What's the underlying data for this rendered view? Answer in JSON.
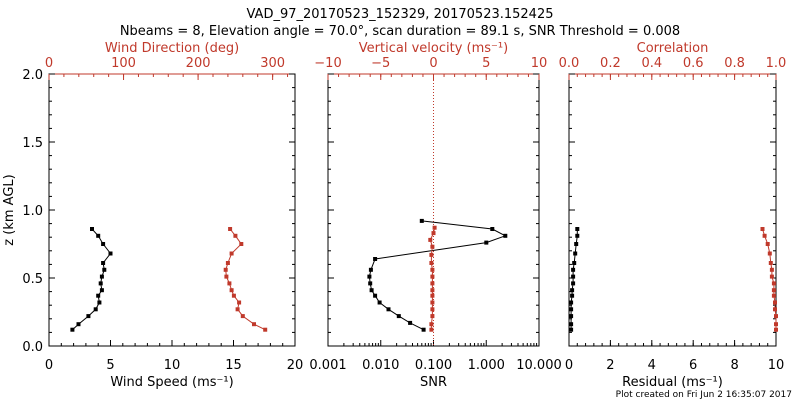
{
  "title_line1": "VAD_97_20170523_152329, 20170523.152425",
  "title_line2": "Nbeams = 8, Elevation angle = 70.0°, scan duration = 89.1 s, SNR Threshold = 0.008",
  "footer": "Plot created on Fri Jun  2 16:35:07 2017",
  "colors": {
    "black": "#000000",
    "red": "#c0392b"
  },
  "chart_data": [
    {
      "type": "line",
      "panel": "wind",
      "ylabel": "z (km AGL)",
      "ylim": [
        0.0,
        2.0
      ],
      "yticks": [
        "0.0",
        "0.5",
        "1.0",
        "1.5",
        "2.0"
      ],
      "bottom_axis": {
        "label": "Wind Speed (ms⁻¹)",
        "xlim": [
          0,
          20
        ],
        "ticks": [
          "0",
          "5",
          "10",
          "15",
          "20"
        ]
      },
      "top_axis": {
        "label": "Wind Direction (deg)",
        "xlim": [
          0,
          330
        ],
        "ticks": [
          "0",
          "100",
          "200",
          "300"
        ],
        "color": "red"
      },
      "series": [
        {
          "axis": "bottom",
          "color": "black",
          "x": [
            1.9,
            2.4,
            3.2,
            3.8,
            4.1,
            4.0,
            4.3,
            4.2,
            4.3,
            4.5,
            4.4,
            5.0,
            4.4,
            4.0,
            3.5
          ],
          "y": [
            0.12,
            0.16,
            0.22,
            0.27,
            0.32,
            0.37,
            0.41,
            0.46,
            0.51,
            0.56,
            0.61,
            0.68,
            0.75,
            0.81,
            0.86
          ]
        },
        {
          "axis": "top",
          "color": "red",
          "x": [
            290,
            275,
            260,
            253,
            255,
            248,
            245,
            242,
            238,
            237,
            240,
            245,
            258,
            250,
            243
          ],
          "y": [
            0.12,
            0.16,
            0.22,
            0.27,
            0.32,
            0.37,
            0.41,
            0.46,
            0.51,
            0.56,
            0.61,
            0.68,
            0.75,
            0.81,
            0.86
          ]
        }
      ]
    },
    {
      "type": "line",
      "panel": "snr",
      "ylim": [
        0.0,
        2.0
      ],
      "bottom_axis": {
        "label": "SNR",
        "scale": "log",
        "xlim": [
          0.001,
          10
        ],
        "ticks": [
          "0.001",
          "0.010",
          "0.100",
          "1.000",
          "10.000"
        ]
      },
      "top_axis": {
        "label": "Vertical velocity (ms⁻¹)",
        "xlim": [
          -10,
          10
        ],
        "ticks": [
          "−10",
          "−5",
          "0",
          "5",
          "10"
        ],
        "color": "red"
      },
      "zero_line": {
        "axis": "top",
        "x": 0,
        "color": "red",
        "style": "dotted"
      },
      "series": [
        {
          "axis": "bottom",
          "color": "black",
          "x": [
            0.065,
            0.036,
            0.022,
            0.014,
            0.0095,
            0.0078,
            0.0067,
            0.0063,
            0.0061,
            0.0065,
            0.0078,
            1.0,
            2.3,
            1.3,
            0.06
          ],
          "y": [
            0.12,
            0.17,
            0.22,
            0.27,
            0.32,
            0.37,
            0.41,
            0.46,
            0.51,
            0.56,
            0.64,
            0.76,
            0.81,
            0.86,
            0.92
          ]
        },
        {
          "axis": "top",
          "color": "red",
          "x": [
            -0.2,
            -0.2,
            -0.1,
            -0.1,
            -0.1,
            -0.1,
            -0.1,
            -0.1,
            -0.1,
            -0.1,
            -0.2,
            -0.2,
            -0.1,
            -0.3,
            0.0,
            0.1
          ],
          "y": [
            0.12,
            0.16,
            0.22,
            0.27,
            0.32,
            0.37,
            0.41,
            0.46,
            0.51,
            0.56,
            0.61,
            0.67,
            0.73,
            0.78,
            0.83,
            0.87
          ]
        }
      ]
    },
    {
      "type": "line",
      "panel": "residual",
      "ylim": [
        0.0,
        2.0
      ],
      "bottom_axis": {
        "label": "Residual (ms⁻¹)",
        "xlim": [
          0,
          10
        ],
        "ticks": [
          "0",
          "2",
          "4",
          "6",
          "8",
          "10"
        ]
      },
      "top_axis": {
        "label": "Correlation",
        "xlim": [
          0.0,
          1.0
        ],
        "ticks": [
          "0.0",
          "0.2",
          "0.4",
          "0.6",
          "0.8",
          "1.0"
        ],
        "color": "red"
      },
      "series": [
        {
          "axis": "bottom",
          "color": "black",
          "x": [
            0.1,
            0.1,
            0.1,
            0.1,
            0.1,
            0.15,
            0.15,
            0.2,
            0.2,
            0.2,
            0.25,
            0.3,
            0.35,
            0.4,
            0.4
          ],
          "y": [
            0.12,
            0.16,
            0.22,
            0.27,
            0.32,
            0.37,
            0.41,
            0.46,
            0.51,
            0.56,
            0.61,
            0.68,
            0.75,
            0.81,
            0.86
          ]
        },
        {
          "axis": "top",
          "color": "red",
          "x": [
            1.0,
            1.0,
            1.0,
            0.995,
            0.995,
            0.99,
            0.99,
            0.99,
            0.98,
            0.98,
            0.975,
            0.97,
            0.96,
            0.945,
            0.935
          ],
          "y": [
            0.12,
            0.16,
            0.22,
            0.27,
            0.32,
            0.37,
            0.41,
            0.46,
            0.51,
            0.56,
            0.61,
            0.68,
            0.75,
            0.81,
            0.86
          ]
        }
      ]
    }
  ]
}
